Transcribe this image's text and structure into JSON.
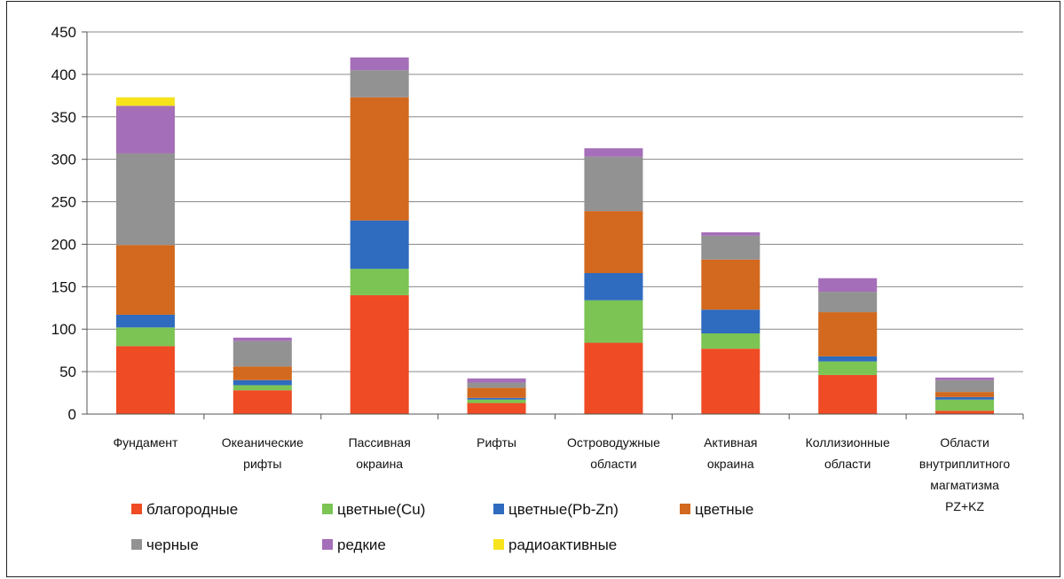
{
  "chart_data": {
    "type": "bar",
    "stacked": true,
    "categories": [
      [
        "Фундамент"
      ],
      [
        "Океанические",
        "рифты"
      ],
      [
        "Пассивная",
        "окраина"
      ],
      [
        "Рифты"
      ],
      [
        "Островодужные",
        "области"
      ],
      [
        "Активная",
        "окраина"
      ],
      [
        "Коллизионные",
        "области"
      ],
      [
        "Области",
        "внутриплитного",
        "магматизма",
        "PZ+KZ"
      ]
    ],
    "series": [
      {
        "name": "благородные",
        "color": "#ef4b24",
        "values": [
          80,
          28,
          140,
          13,
          84,
          77,
          46,
          4
        ]
      },
      {
        "name": "цветные(Cu)",
        "color": "#7cc454",
        "values": [
          22,
          6,
          31,
          4,
          50,
          18,
          16,
          13
        ]
      },
      {
        "name": "цветные(Pb-Zn)",
        "color": "#2f6bbf",
        "values": [
          15,
          6,
          57,
          2,
          32,
          28,
          6,
          3
        ]
      },
      {
        "name": "цветные",
        "color": "#d2691e",
        "values": [
          82,
          16,
          145,
          12,
          73,
          59,
          52,
          6
        ]
      },
      {
        "name": "черные",
        "color": "#929292",
        "values": [
          108,
          30,
          32,
          6,
          64,
          28,
          24,
          14
        ]
      },
      {
        "name": "редкие",
        "color": "#a56eb8",
        "values": [
          56,
          4,
          15,
          5,
          10,
          4,
          16,
          3
        ]
      },
      {
        "name": "радиоактивные",
        "color": "#f6e31c",
        "values": [
          10,
          0,
          0,
          0,
          0,
          0,
          0,
          0
        ]
      }
    ],
    "ylim": [
      0,
      450
    ],
    "yticks": [
      0,
      50,
      100,
      150,
      200,
      250,
      300,
      350,
      400,
      450
    ],
    "grid": true,
    "legend_position": "bottom-left",
    "title": "",
    "xlabel": "",
    "ylabel": ""
  }
}
